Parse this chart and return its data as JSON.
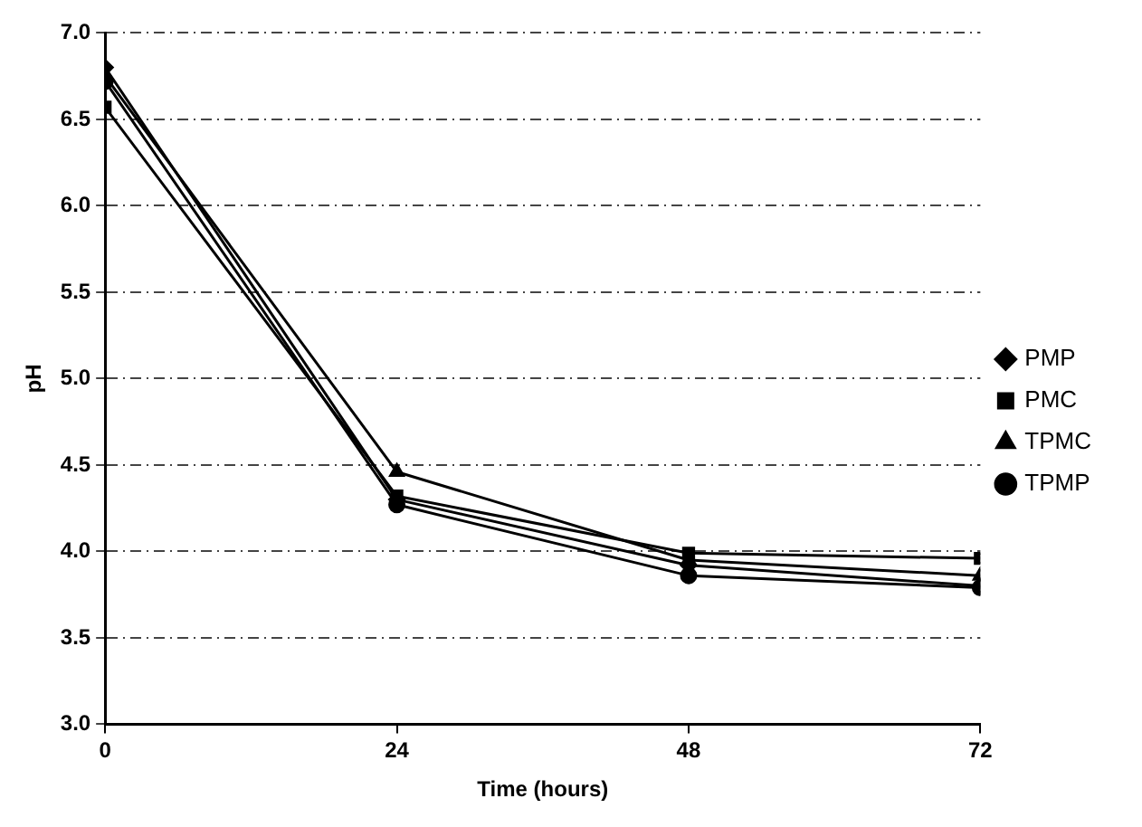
{
  "chart_data": {
    "type": "line",
    "xlabel": "Time (hours)",
    "ylabel": "pH",
    "x": [
      0,
      24,
      48,
      72
    ],
    "series": [
      {
        "name": "PMP",
        "color": "#000000",
        "marker": "diamond",
        "values": [
          6.8,
          4.3,
          3.92,
          3.8
        ]
      },
      {
        "name": "PMC",
        "color": "#000000",
        "marker": "square",
        "values": [
          6.57,
          4.32,
          3.99,
          3.96
        ]
      },
      {
        "name": "TPMC",
        "color": "#000000",
        "marker": "triangle",
        "values": [
          6.75,
          4.46,
          3.95,
          3.86
        ]
      },
      {
        "name": "TPMP",
        "color": "#000000",
        "marker": "circle",
        "values": [
          6.72,
          4.27,
          3.86,
          3.79
        ]
      }
    ],
    "xlim": [
      0,
      72
    ],
    "xticks": [
      0,
      24,
      48,
      72
    ],
    "ylim": [
      3,
      7
    ],
    "yticks": [
      {
        "value": 3,
        "label": "3.0"
      },
      3.5,
      {
        "value": 4,
        "label": "4.0"
      },
      4.5,
      {
        "value": 5,
        "label": "5.0"
      },
      5.5,
      {
        "value": 6,
        "label": "6.0"
      },
      6.5,
      {
        "value": 7,
        "label": "7.0"
      }
    ],
    "grid": "y",
    "legend": "right",
    "line_style": "solid"
  }
}
